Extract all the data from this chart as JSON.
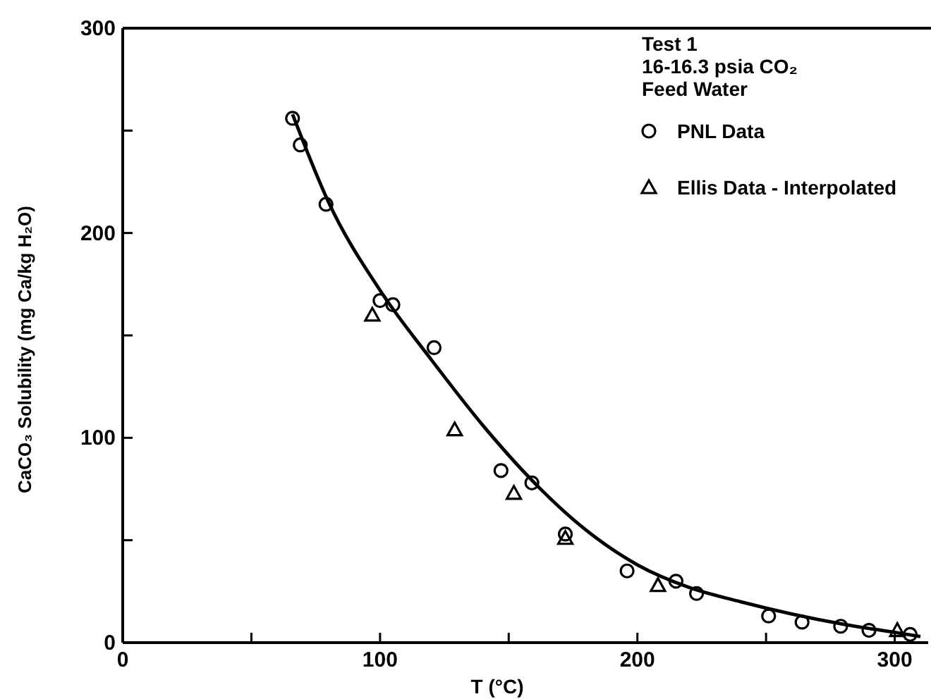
{
  "chart_data": {
    "type": "scatter",
    "xlabel": "T (°C)",
    "ylabel": "CaCO₃ Solubility (mg Ca/kg H₂O)",
    "legend_title": "Test 1\n16-16.3 psia CO₂\nFeed Water",
    "legend": "top right",
    "xlim": [
      0,
      313
    ],
    "ylim": [
      0,
      300
    ],
    "xticks": [
      0,
      {
        "value": 50,
        "label": null
      },
      100,
      {
        "value": 150,
        "label": null
      },
      200,
      {
        "value": 250,
        "label": null
      },
      300
    ],
    "yticks": [
      0,
      {
        "value": 50,
        "label": null
      },
      100,
      {
        "value": 150,
        "label": null
      },
      200,
      {
        "value": 250,
        "label": null
      },
      300
    ],
    "series": [
      {
        "name": "PNL Data",
        "marker": "circle",
        "color": "#000000",
        "x": [
          66,
          69,
          79,
          100,
          105,
          121,
          147,
          159,
          172,
          196,
          215,
          223,
          251,
          264,
          279,
          290,
          306
        ],
        "values": [
          256,
          243,
          214,
          167,
          165,
          144,
          84,
          78,
          53,
          35,
          30,
          24,
          13,
          10,
          8,
          6,
          4
        ]
      },
      {
        "name": "Ellis Data - Interpolated",
        "marker": "triangle",
        "color": "#000000",
        "x": [
          97,
          129,
          152,
          172,
          208,
          301
        ],
        "values": [
          160,
          104,
          73,
          51,
          28,
          6
        ]
      },
      {
        "type": "line",
        "marker": "none",
        "color": "#000000",
        "x": [
          66,
          80,
          100,
          120,
          140,
          160,
          180,
          200,
          220,
          240,
          260,
          280,
          300,
          310
        ],
        "values": [
          258,
          215,
          172,
          138,
          106,
          78,
          55,
          38,
          27,
          20,
          14,
          9,
          5,
          3
        ]
      }
    ]
  }
}
